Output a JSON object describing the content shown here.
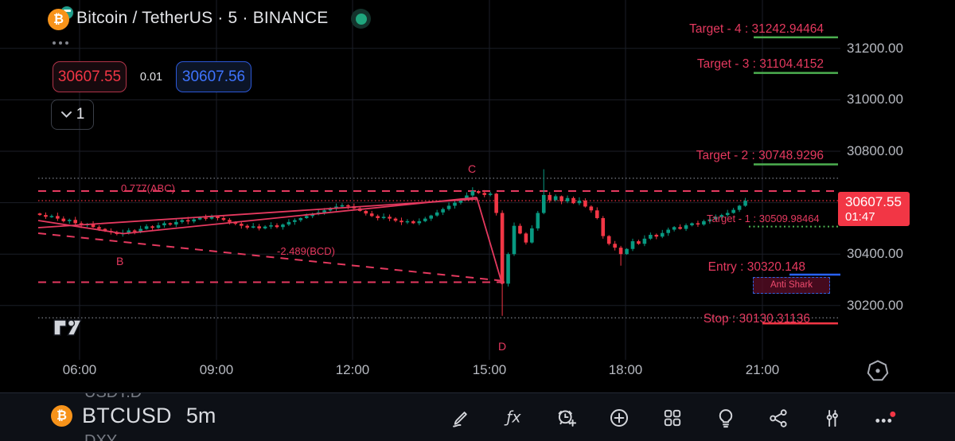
{
  "header": {
    "title": "Bitcoin / TetherUS · 5 · BINANCE",
    "pair_icon_glyph": "₿",
    "sell_price": "30607.55",
    "spread": "0.01",
    "buy_price": "30607.56",
    "drawings_count": "1",
    "status_color": "#1fa67d"
  },
  "chart_data": {
    "type": "candlestick",
    "symbol": "BTCUSDT",
    "exchange": "BINANCE",
    "interval_minutes": 5,
    "last_price": "30607.55",
    "last_price_value": 30607.55,
    "countdown": "01:47",
    "x_ticks": [
      "06:00",
      "09:00",
      "12:00",
      "15:00",
      "18:00",
      "21:00"
    ],
    "y_ticks": [
      "31200.00",
      "31000.00",
      "30800.00",
      "30400.00",
      "30200.00"
    ],
    "y_tick_values": [
      31200,
      31000,
      30800,
      30400,
      30200
    ],
    "grid_prices": [
      31200,
      31000,
      30800,
      30600,
      30400,
      30200
    ],
    "levels": [
      {
        "name": "target-4",
        "label": "Target - 4 : 31242.94464",
        "price": 31242.94464,
        "line_color": "#4caf50"
      },
      {
        "name": "target-3",
        "label": "Target - 3 : 31104.4152",
        "price": 31104.4152,
        "line_color": "#4caf50"
      },
      {
        "name": "target-2",
        "label": "Target - 2 : 30748.9296",
        "price": 30748.9296,
        "line_color": "#4caf50"
      },
      {
        "name": "target-1",
        "label": "Target - 1 : 30509.98464",
        "price": 30509.98464,
        "line_color": "#4caf50",
        "dotted": true
      },
      {
        "name": "entry",
        "label": "Entry : 30320.148",
        "price": 30320.148,
        "line_color": "#2962ff"
      },
      {
        "name": "stop",
        "label": "Stop : 30130.31136",
        "price": 30130.31136,
        "line_color": "#f23645"
      }
    ],
    "guides": {
      "upper_dotted_price": 30695,
      "stop_dotted_price": 30152
    },
    "pattern": {
      "name": "Anti Shark",
      "letters": {
        "b": "B",
        "c": "C",
        "d": "D"
      },
      "fib_abc": "0.777(ABC)",
      "fib_bcd": "-2.489(BCD)"
    },
    "candles": {
      "first_open": 30558,
      "closes": [
        30552,
        30545,
        30548,
        30538,
        30528,
        30533,
        30520,
        30512,
        30517,
        30505,
        30498,
        30490,
        30485,
        30478,
        30482,
        30492,
        30488,
        30498,
        30508,
        30502,
        30512,
        30520,
        30515,
        30525,
        30532,
        30527,
        30535,
        30542,
        30538,
        30546,
        30540,
        30533,
        30525,
        30518,
        30510,
        30503,
        30508,
        30500,
        30507,
        30512,
        30505,
        30515,
        30525,
        30532,
        30540,
        30548,
        30555,
        30562,
        30570,
        30578,
        30585,
        30590,
        30586,
        30578,
        30568,
        30558,
        30548,
        30540,
        30545,
        30538,
        30530,
        30524,
        30528,
        30520,
        30528,
        30538,
        30550,
        30562,
        30575,
        30588,
        30600,
        30612,
        30628,
        30645,
        30638,
        30630,
        30635,
        30560,
        30285,
        30400,
        30510,
        30480,
        30445,
        30500,
        30560,
        30630,
        30610,
        30625,
        30605,
        30618,
        30598,
        30608,
        30585,
        30570,
        30540,
        30470,
        30440,
        30425,
        30400,
        30420,
        30450,
        30440,
        30460,
        30475,
        30468,
        30482,
        30495,
        30505,
        30498,
        30512,
        30520,
        30515,
        30528,
        30535,
        30545,
        30552,
        30560,
        30572,
        30588,
        30607.55
      ],
      "extremes": {
        "73": {
          "high": 30660
        },
        "78": {
          "low": 30160
        },
        "85": {
          "high": 30730
        },
        "98": {
          "low": 30355
        }
      }
    },
    "colors": {
      "up": "#089981",
      "down": "#f23645",
      "drawing": "#e5395f",
      "grid": "#1b1e27"
    }
  },
  "bottom_bar": {
    "ticker_prev": "USDT.D",
    "symbol": "BTCUSD",
    "symbol_icon_glyph": "₿",
    "timeframe": "5m",
    "ticker_next": "DXY",
    "fx_glyph": "ƒx",
    "icons": [
      "draw-pencil",
      "indicators-fx",
      "alert-clock",
      "add-plus",
      "layout-grid",
      "ideas-bulb",
      "share",
      "compare-sliders",
      "more-dots"
    ]
  }
}
